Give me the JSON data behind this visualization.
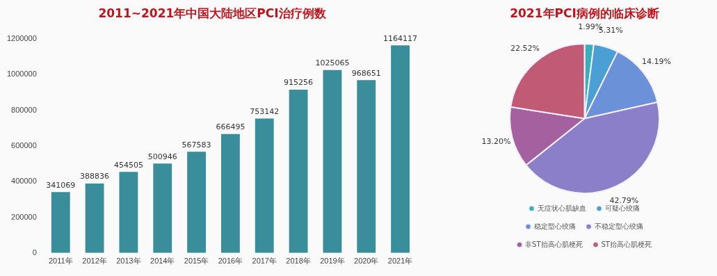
{
  "chart_data": [
    {
      "type": "bar",
      "title": "2011~2021年中国大陆地区PCI治疗例数",
      "categories": [
        "2011年",
        "2012年",
        "2013年",
        "2014年",
        "2015年",
        "2016年",
        "2017年",
        "2018年",
        "2019年",
        "2020年",
        "2021年"
      ],
      "values": [
        341069,
        388836,
        454505,
        500946,
        567583,
        666495,
        753142,
        915256,
        1025065,
        968651,
        1164117
      ],
      "color": "#3a8e9b",
      "ylim": [
        0,
        1200000
      ],
      "yticks": [
        0,
        200000,
        400000,
        600000,
        800000,
        1000000,
        1200000
      ],
      "grid": false,
      "legend": false,
      "data_labels": true
    },
    {
      "type": "pie",
      "title": "2021年PCI病例的临床诊断",
      "categories": [
        "无症状心肌缺血",
        "可疑心绞痛",
        "稳定型心绞痛",
        "不稳定型心绞痛",
        "非ST抬高心肌梗死",
        "ST抬高心肌梗死"
      ],
      "values": [
        1.99,
        5.31,
        14.19,
        42.79,
        13.2,
        22.52
      ],
      "value_labels": [
        "1.99%",
        "5.31%",
        "14.19%",
        "42.79%",
        "13.20%",
        "22.52%"
      ],
      "colors": [
        "#3aafb9",
        "#4aa0d4",
        "#6b91d8",
        "#8a7fc8",
        "#a5609f",
        "#c05a75"
      ],
      "legend": "bottom"
    }
  ]
}
